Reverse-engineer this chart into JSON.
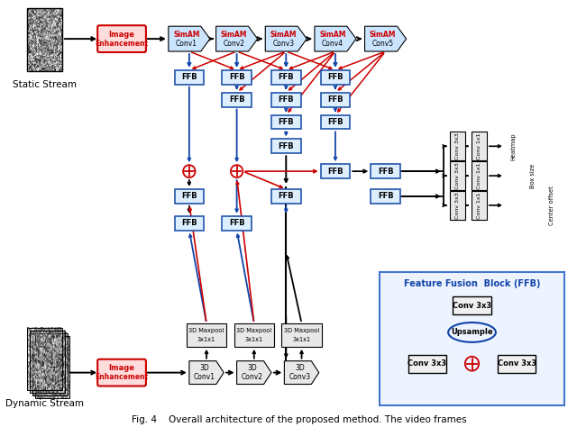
{
  "bg_color": "#ffffff",
  "static_label": "Static Stream",
  "dynamic_label": "Dynamic Stream",
  "simam_color": "#cce5ff",
  "ffb_fc": "#ddeeff",
  "ffb_ec": "#2255aa",
  "conv3d_fc": "#e8e8e8",
  "enhance_fc": "#ffdddd",
  "enhance_ec": "#cc0000",
  "head_fc": "#e8e8e8",
  "inset_fc": "#eef4ff",
  "inset_ec": "#4477cc",
  "red": "#cc0000",
  "blue": "#1144aa",
  "black": "#000000",
  "caption": "Fig. 4    Overall architecture of the proposed method. The video frames"
}
